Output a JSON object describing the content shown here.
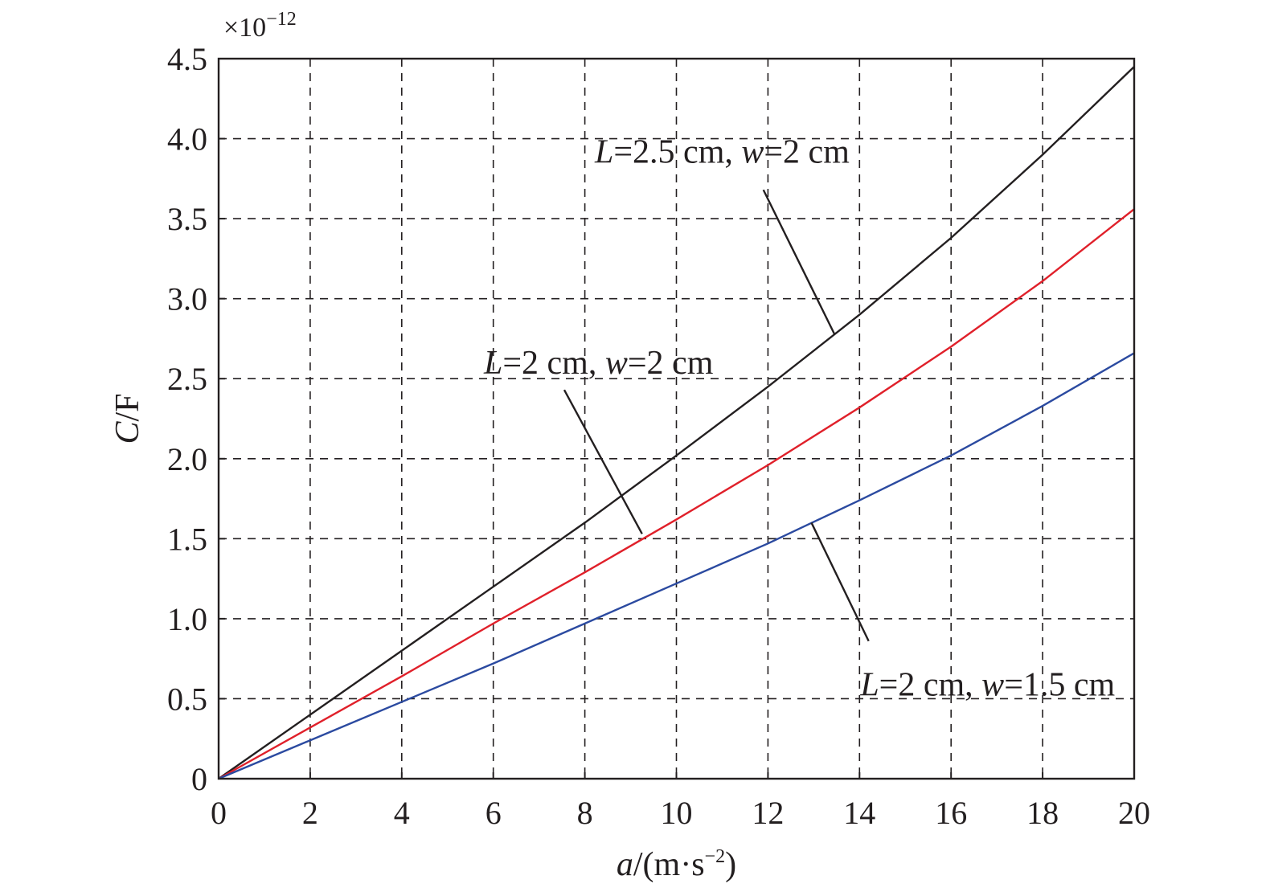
{
  "chart_data": {
    "type": "line",
    "xlabel": {
      "italic": "a",
      "rest": "/(m·s",
      "sup": "−2",
      "close": ")"
    },
    "ylabel": {
      "italic": "C",
      "rest": "/F"
    },
    "y_multiplier": {
      "prefix": "×10",
      "sup": "−12"
    },
    "xlim": [
      0,
      20
    ],
    "ylim": [
      0,
      4.5
    ],
    "x_ticks": [
      0,
      2,
      4,
      6,
      8,
      10,
      12,
      14,
      16,
      18,
      20
    ],
    "x_tick_labels": [
      "0",
      "2",
      "4",
      "6",
      "8",
      "10",
      "12",
      "14",
      "16",
      "18",
      "20"
    ],
    "y_ticks": [
      0,
      0.5,
      1.0,
      1.5,
      2.0,
      2.5,
      3.0,
      3.5,
      4.0,
      4.5
    ],
    "y_tick_labels": [
      "0",
      "0.5",
      "1.0",
      "1.5",
      "2.0",
      "2.5",
      "3.0",
      "3.5",
      "4.0",
      "4.5"
    ],
    "grid": true,
    "legend": "none",
    "series": [
      {
        "name": "L=2.5 cm, w=2 cm",
        "color": "#231f20",
        "x": [
          0,
          2,
          4,
          6,
          8,
          10,
          12,
          14,
          16,
          18,
          20
        ],
        "y": [
          0,
          0.4,
          0.8,
          1.2,
          1.6,
          2.02,
          2.45,
          2.9,
          3.38,
          3.9,
          4.45
        ]
      },
      {
        "name": "L=2 cm, w=2 cm",
        "color": "#e0202a",
        "x": [
          0,
          2,
          4,
          6,
          8,
          10,
          12,
          14,
          16,
          18,
          20
        ],
        "y": [
          0,
          0.32,
          0.64,
          0.97,
          1.29,
          1.62,
          1.96,
          2.32,
          2.7,
          3.11,
          3.56
        ]
      },
      {
        "name": "L=2 cm, w=1.5 cm",
        "color": "#2b4aa0",
        "x": [
          0,
          2,
          4,
          6,
          8,
          10,
          12,
          14,
          16,
          18,
          20
        ],
        "y": [
          0,
          0.24,
          0.48,
          0.72,
          0.97,
          1.22,
          1.47,
          1.74,
          2.02,
          2.33,
          2.66
        ]
      }
    ],
    "annotations": [
      {
        "parts": [
          {
            "t": "L",
            "i": true
          },
          {
            "t": "=2.5 cm, ",
            "i": false
          },
          {
            "t": "w",
            "i": true
          },
          {
            "t": "=2 cm",
            "i": false
          }
        ],
        "at": [
          11.0,
          3.85
        ],
        "leader_from": [
          11.9,
          3.68
        ],
        "leader_to": [
          13.45,
          2.78
        ]
      },
      {
        "parts": [
          {
            "t": "L",
            "i": true
          },
          {
            "t": "=2 cm, ",
            "i": false
          },
          {
            "t": "w",
            "i": true
          },
          {
            "t": "=2 cm",
            "i": false
          }
        ],
        "at": [
          8.3,
          2.53
        ],
        "leader_from": [
          7.55,
          2.43
        ],
        "leader_to": [
          9.25,
          1.53
        ]
      },
      {
        "parts": [
          {
            "t": "L",
            "i": true
          },
          {
            "t": "=2 cm, ",
            "i": false
          },
          {
            "t": "w",
            "i": true
          },
          {
            "t": "=1.5 cm",
            "i": false
          }
        ],
        "at": [
          16.8,
          0.52
        ],
        "leader_from": [
          14.2,
          0.86
        ],
        "leader_to": [
          12.95,
          1.6
        ]
      }
    ]
  }
}
